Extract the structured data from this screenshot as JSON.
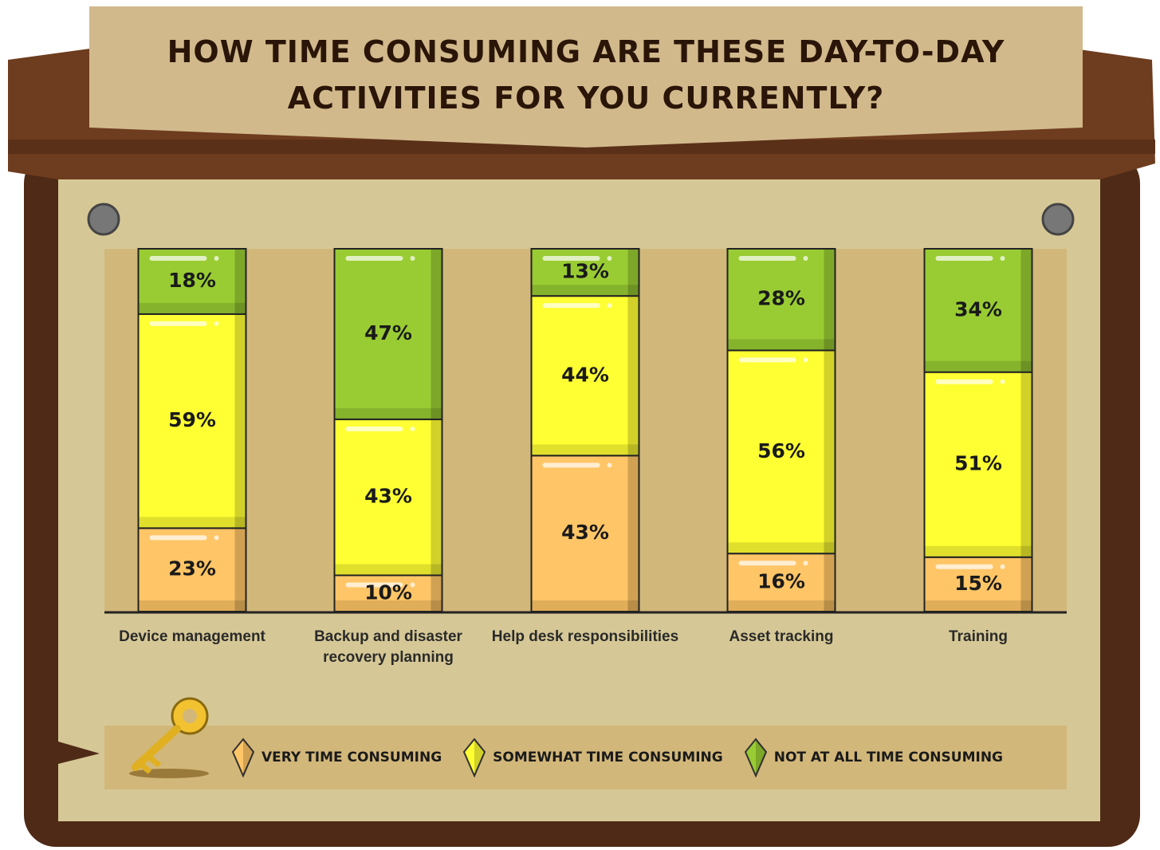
{
  "chart_data": {
    "type": "stacked-bar",
    "title": "How time consuming are these day-to-day activities for you currently?",
    "categories": [
      "Device management",
      "Backup and disaster recovery planning",
      "Help desk responsibilities",
      "Asset tracking",
      "Training"
    ],
    "series": [
      {
        "name": "Very time consuming",
        "color": "#ffc566",
        "values": [
          23,
          10,
          43,
          16,
          15
        ],
        "value_labels": [
          "23%",
          "10%",
          "43%",
          "16%",
          "15%"
        ]
      },
      {
        "name": "Somewhat time consuming",
        "color": "#ffff33",
        "values": [
          59,
          43,
          44,
          56,
          51
        ],
        "value_labels": [
          "59%",
          "43%",
          "44%",
          "56%",
          "51%"
        ]
      },
      {
        "name": "Not at all time consuming",
        "color": "#99cc33",
        "values": [
          18,
          47,
          13,
          28,
          34
        ],
        "value_labels": [
          "18%",
          "47%",
          "13%",
          "28%",
          "34%"
        ]
      }
    ],
    "ylim": [
      0,
      100
    ]
  }
}
